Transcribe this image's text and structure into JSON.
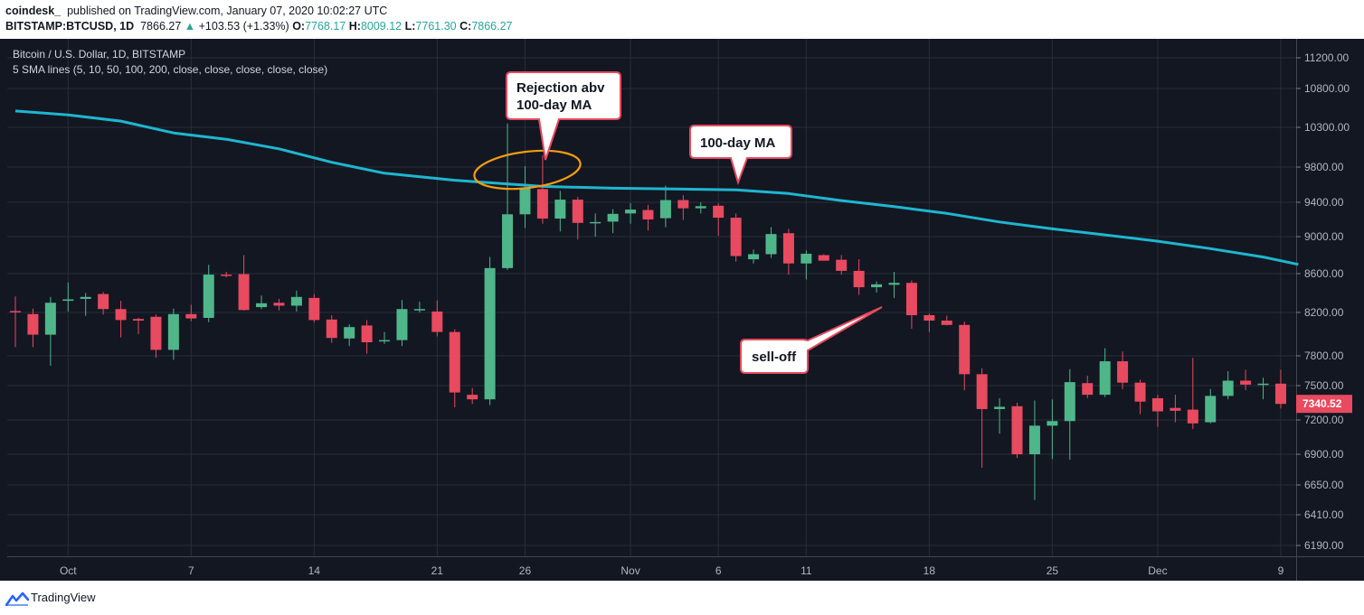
{
  "header": {
    "publisher": "coindesk_",
    "published_text": "published on TradingView.com, January 07, 2020 10:02:27 UTC",
    "symbol": "BITSTAMP:BTCUSD, 1D",
    "last": "7866.27",
    "change_arrow": "▲",
    "change": "+103.53 (+1.33%)",
    "o_label": "O:",
    "o_val": "7768.17",
    "h_label": "H:",
    "h_val": "8009.12",
    "l_label": "L:",
    "l_val": "7761.30",
    "c_label": "C:",
    "c_val": "7866.27"
  },
  "legend": {
    "title": "Bitcoin / U.S. Dollar, 1D, BITSTAMP",
    "indicator": "5 SMA lines (5, 10, 50, 100, 200, close, close, close, close, close)"
  },
  "annotations": {
    "rejection": [
      "Rejection abv",
      "100-day MA"
    ],
    "ma_label": "100-day MA",
    "selloff": "sell-off"
  },
  "footer": {
    "brand": "TradingView"
  },
  "colors": {
    "background": "#131722",
    "grid": "#2a2e39",
    "up": "#4fb68a",
    "down": "#e84a5f",
    "ma": "#1fb6d0",
    "ellipse": "#f39c12",
    "price_tag": "#e84a5f"
  },
  "chart_data": {
    "type": "candlestick",
    "title": "Bitcoin / U.S. Dollar, 1D, BITSTAMP",
    "x_ticks": [
      "Oct",
      "7",
      "14",
      "21",
      "26",
      "Nov",
      "6",
      "11",
      "18",
      "25",
      "Dec",
      "9"
    ],
    "y_ticks": [
      "11200.00",
      "10800.00",
      "10300.00",
      "9800.00",
      "9400.00",
      "9000.00",
      "8600.00",
      "8200.00",
      "7800.00",
      "7500.00",
      "7200.00",
      "6900.00",
      "6650.00",
      "6410.00",
      "6190.00"
    ],
    "last_price_label": "7340.52",
    "candles": [
      {
        "o": 8215,
        "h": 8365,
        "l": 7880,
        "c": 8205
      },
      {
        "o": 8185,
        "h": 8240,
        "l": 7880,
        "c": 7995
      },
      {
        "o": 7995,
        "h": 8360,
        "l": 7700,
        "c": 8300
      },
      {
        "o": 8320,
        "h": 8510,
        "l": 8210,
        "c": 8335
      },
      {
        "o": 8340,
        "h": 8400,
        "l": 8170,
        "c": 8360
      },
      {
        "o": 8390,
        "h": 8410,
        "l": 8180,
        "c": 8235
      },
      {
        "o": 8235,
        "h": 8320,
        "l": 7970,
        "c": 8130
      },
      {
        "o": 8140,
        "h": 8150,
        "l": 8000,
        "c": 8125
      },
      {
        "o": 8160,
        "h": 8180,
        "l": 7780,
        "c": 7855
      },
      {
        "o": 7855,
        "h": 8240,
        "l": 7760,
        "c": 8185
      },
      {
        "o": 8185,
        "h": 8280,
        "l": 8120,
        "c": 8145
      },
      {
        "o": 8150,
        "h": 8695,
        "l": 8110,
        "c": 8590
      },
      {
        "o": 8590,
        "h": 8620,
        "l": 8560,
        "c": 8580
      },
      {
        "o": 8595,
        "h": 8800,
        "l": 8220,
        "c": 8225
      },
      {
        "o": 8255,
        "h": 8375,
        "l": 8235,
        "c": 8295
      },
      {
        "o": 8300,
        "h": 8340,
        "l": 8220,
        "c": 8270
      },
      {
        "o": 8270,
        "h": 8425,
        "l": 8210,
        "c": 8360
      },
      {
        "o": 8350,
        "h": 8390,
        "l": 8110,
        "c": 8130
      },
      {
        "o": 8135,
        "h": 8175,
        "l": 7920,
        "c": 7965
      },
      {
        "o": 7960,
        "h": 8090,
        "l": 7890,
        "c": 8065
      },
      {
        "o": 8080,
        "h": 8130,
        "l": 7820,
        "c": 7925
      },
      {
        "o": 7935,
        "h": 8020,
        "l": 7910,
        "c": 7945
      },
      {
        "o": 7945,
        "h": 8330,
        "l": 7890,
        "c": 8235
      },
      {
        "o": 8230,
        "h": 8310,
        "l": 8200,
        "c": 8235
      },
      {
        "o": 8210,
        "h": 8325,
        "l": 7980,
        "c": 8020
      },
      {
        "o": 8020,
        "h": 8045,
        "l": 7310,
        "c": 7440
      },
      {
        "o": 7420,
        "h": 7480,
        "l": 7340,
        "c": 7380
      },
      {
        "o": 7380,
        "h": 8780,
        "l": 7330,
        "c": 8660
      },
      {
        "o": 8660,
        "h": 10350,
        "l": 8640,
        "c": 9260
      },
      {
        "o": 9260,
        "h": 9810,
        "l": 9100,
        "c": 9560
      },
      {
        "o": 9550,
        "h": 9950,
        "l": 9150,
        "c": 9210
      },
      {
        "o": 9210,
        "h": 9530,
        "l": 9060,
        "c": 9430
      },
      {
        "o": 9430,
        "h": 9460,
        "l": 8970,
        "c": 9160
      },
      {
        "o": 9165,
        "h": 9270,
        "l": 9000,
        "c": 9170
      },
      {
        "o": 9175,
        "h": 9320,
        "l": 9040,
        "c": 9265
      },
      {
        "o": 9270,
        "h": 9390,
        "l": 9150,
        "c": 9315
      },
      {
        "o": 9310,
        "h": 9370,
        "l": 9070,
        "c": 9200
      },
      {
        "o": 9215,
        "h": 9590,
        "l": 9110,
        "c": 9425
      },
      {
        "o": 9425,
        "h": 9480,
        "l": 9195,
        "c": 9330
      },
      {
        "o": 9330,
        "h": 9400,
        "l": 9270,
        "c": 9355
      },
      {
        "o": 9360,
        "h": 9390,
        "l": 9010,
        "c": 9220
      },
      {
        "o": 9220,
        "h": 9270,
        "l": 8730,
        "c": 8790
      },
      {
        "o": 8755,
        "h": 8860,
        "l": 8710,
        "c": 8810
      },
      {
        "o": 8810,
        "h": 9110,
        "l": 8770,
        "c": 9030
      },
      {
        "o": 9040,
        "h": 9090,
        "l": 8590,
        "c": 8710
      },
      {
        "o": 8710,
        "h": 8850,
        "l": 8540,
        "c": 8815
      },
      {
        "o": 8800,
        "h": 8810,
        "l": 8740,
        "c": 8740
      },
      {
        "o": 8750,
        "h": 8800,
        "l": 8590,
        "c": 8630
      },
      {
        "o": 8630,
        "h": 8755,
        "l": 8380,
        "c": 8460
      },
      {
        "o": 8460,
        "h": 8520,
        "l": 8405,
        "c": 8490
      },
      {
        "o": 8485,
        "h": 8620,
        "l": 8350,
        "c": 8505
      },
      {
        "o": 8505,
        "h": 8530,
        "l": 8050,
        "c": 8175
      },
      {
        "o": 8175,
        "h": 8190,
        "l": 8020,
        "c": 8125
      },
      {
        "o": 8125,
        "h": 8170,
        "l": 8080,
        "c": 8085
      },
      {
        "o": 8085,
        "h": 8115,
        "l": 7460,
        "c": 7615
      },
      {
        "o": 7615,
        "h": 7675,
        "l": 6790,
        "c": 7295
      },
      {
        "o": 7295,
        "h": 7390,
        "l": 7080,
        "c": 7315
      },
      {
        "o": 7320,
        "h": 7350,
        "l": 6870,
        "c": 6900
      },
      {
        "o": 6900,
        "h": 7370,
        "l": 6530,
        "c": 7150
      },
      {
        "o": 7150,
        "h": 7380,
        "l": 6860,
        "c": 7190
      },
      {
        "o": 7190,
        "h": 7665,
        "l": 6855,
        "c": 7535
      },
      {
        "o": 7525,
        "h": 7600,
        "l": 7390,
        "c": 7420
      },
      {
        "o": 7420,
        "h": 7870,
        "l": 7400,
        "c": 7745
      },
      {
        "o": 7745,
        "h": 7840,
        "l": 7470,
        "c": 7530
      },
      {
        "o": 7530,
        "h": 7560,
        "l": 7250,
        "c": 7360
      },
      {
        "o": 7390,
        "h": 7420,
        "l": 7140,
        "c": 7275
      },
      {
        "o": 7305,
        "h": 7420,
        "l": 7180,
        "c": 7280
      },
      {
        "o": 7290,
        "h": 7780,
        "l": 7120,
        "c": 7170
      },
      {
        "o": 7180,
        "h": 7470,
        "l": 7170,
        "c": 7410
      },
      {
        "o": 7410,
        "h": 7645,
        "l": 7380,
        "c": 7550
      },
      {
        "o": 7550,
        "h": 7660,
        "l": 7460,
        "c": 7510
      },
      {
        "o": 7515,
        "h": 7580,
        "l": 7380,
        "c": 7520
      },
      {
        "o": 7520,
        "h": 7660,
        "l": 7300,
        "c": 7340
      }
    ],
    "sma100": {
      "name": "100-day MA",
      "points": [
        [
          0,
          10510
        ],
        [
          3,
          10460
        ],
        [
          6,
          10380
        ],
        [
          9,
          10230
        ],
        [
          12,
          10150
        ],
        [
          15,
          10030
        ],
        [
          18,
          9860
        ],
        [
          21,
          9730
        ],
        [
          25,
          9650
        ],
        [
          30,
          9580
        ],
        [
          34,
          9560
        ],
        [
          38,
          9550
        ],
        [
          41,
          9540
        ],
        [
          44,
          9500
        ],
        [
          47,
          9420
        ],
        [
          50,
          9350
        ],
        [
          53,
          9270
        ],
        [
          56,
          9170
        ],
        [
          59,
          9090
        ],
        [
          62,
          9020
        ],
        [
          65,
          8950
        ],
        [
          68,
          8870
        ],
        [
          71,
          8780
        ],
        [
          73,
          8700
        ]
      ]
    }
  }
}
